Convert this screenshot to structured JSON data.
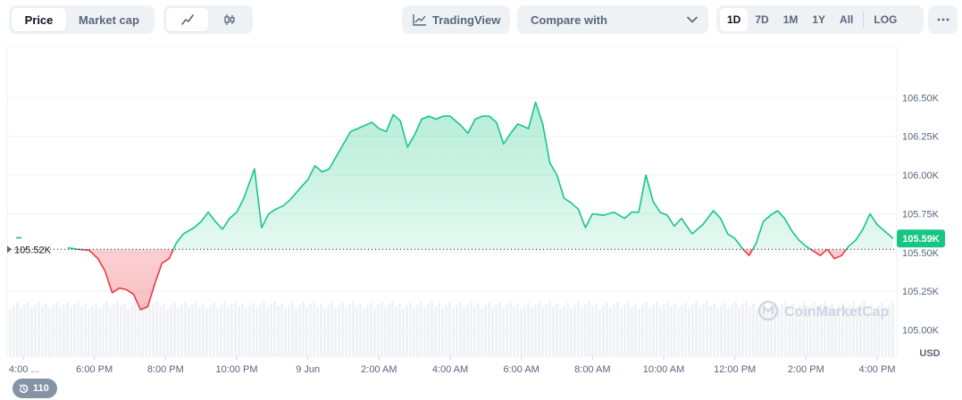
{
  "toolbar": {
    "view_tabs": [
      {
        "label": "Price",
        "active": true
      },
      {
        "label": "Market cap",
        "active": false
      }
    ],
    "chart_types": [
      {
        "icon": "line-chart-icon",
        "active": true
      },
      {
        "icon": "candlestick-icon",
        "active": false
      }
    ],
    "tradingview_label": "TradingView",
    "compare_label": "Compare with",
    "ranges": [
      {
        "label": "1D",
        "active": true
      },
      {
        "label": "7D",
        "active": false
      },
      {
        "label": "1M",
        "active": false
      },
      {
        "label": "1Y",
        "active": false
      },
      {
        "label": "All",
        "active": false
      },
      {
        "label": "LOG",
        "active": false
      }
    ],
    "more_icon": "more-dots-icon"
  },
  "watermark": "CoinMarketCap",
  "notification_count": "110",
  "colors": {
    "up": "#16c784",
    "down": "#ea3943",
    "axis_text": "#58667e",
    "grid": "#eff2f5"
  },
  "chart_data": {
    "type": "area",
    "ylabel": "USD",
    "reference_value": 105520,
    "reference_label": "105.52K",
    "current_value": 105590,
    "current_label": "105.59K",
    "ylim": [
      104830,
      106830
    ],
    "yticks": [
      {
        "value": 106500,
        "label": "106.50K"
      },
      {
        "value": 106250,
        "label": "106.25K"
      },
      {
        "value": 106000,
        "label": "106.00K"
      },
      {
        "value": 105750,
        "label": "105.75K"
      },
      {
        "value": 105500,
        "label": "105.50K"
      },
      {
        "value": 105250,
        "label": "105.25K"
      },
      {
        "value": 105000,
        "label": "105.00K"
      }
    ],
    "xlim": [
      0,
      24.5
    ],
    "xticks": [
      {
        "value": 0,
        "label": "4:00 ..."
      },
      {
        "value": 2,
        "label": "6:00 PM"
      },
      {
        "value": 4,
        "label": "8:00 PM"
      },
      {
        "value": 6,
        "label": "10:00 PM"
      },
      {
        "value": 8,
        "label": "9 Jun"
      },
      {
        "value": 10,
        "label": "2:00 AM"
      },
      {
        "value": 12,
        "label": "4:00 AM"
      },
      {
        "value": 14,
        "label": "6:00 AM"
      },
      {
        "value": 16,
        "label": "8:00 AM"
      },
      {
        "value": 18,
        "label": "10:00 AM"
      },
      {
        "value": 20,
        "label": "12:00 PM"
      },
      {
        "value": 22,
        "label": "2:00 PM"
      },
      {
        "value": 24,
        "label": "4:00 PM"
      }
    ],
    "x_unit": "hours since 4:00 PM, 8 Jun",
    "points": [
      [
        1.25,
        105530
      ],
      [
        1.55,
        105520
      ],
      [
        1.85,
        105515
      ],
      [
        2.1,
        105460
      ],
      [
        2.3,
        105380
      ],
      [
        2.5,
        105240
      ],
      [
        2.7,
        105270
      ],
      [
        2.9,
        105260
      ],
      [
        3.1,
        105230
      ],
      [
        3.3,
        105130
      ],
      [
        3.5,
        105150
      ],
      [
        3.7,
        105300
      ],
      [
        3.9,
        105430
      ],
      [
        4.1,
        105460
      ],
      [
        4.3,
        105560
      ],
      [
        4.5,
        105620
      ],
      [
        4.8,
        105660
      ],
      [
        5.0,
        105700
      ],
      [
        5.2,
        105760
      ],
      [
        5.4,
        105700
      ],
      [
        5.6,
        105650
      ],
      [
        5.8,
        105720
      ],
      [
        6.0,
        105760
      ],
      [
        6.2,
        105850
      ],
      [
        6.5,
        106040
      ],
      [
        6.7,
        105660
      ],
      [
        6.9,
        105750
      ],
      [
        7.1,
        105780
      ],
      [
        7.3,
        105800
      ],
      [
        7.5,
        105840
      ],
      [
        7.8,
        105920
      ],
      [
        8.0,
        105970
      ],
      [
        8.2,
        106060
      ],
      [
        8.4,
        106020
      ],
      [
        8.6,
        106040
      ],
      [
        8.8,
        106120
      ],
      [
        9.0,
        106200
      ],
      [
        9.2,
        106280
      ],
      [
        9.4,
        106300
      ],
      [
        9.6,
        106320
      ],
      [
        9.8,
        106340
      ],
      [
        10.0,
        106300
      ],
      [
        10.2,
        106280
      ],
      [
        10.4,
        106390
      ],
      [
        10.6,
        106350
      ],
      [
        10.8,
        106180
      ],
      [
        11.0,
        106260
      ],
      [
        11.2,
        106360
      ],
      [
        11.4,
        106380
      ],
      [
        11.6,
        106360
      ],
      [
        11.8,
        106380
      ],
      [
        12.0,
        106380
      ],
      [
        12.3,
        106320
      ],
      [
        12.5,
        106270
      ],
      [
        12.7,
        106360
      ],
      [
        12.9,
        106380
      ],
      [
        13.1,
        106380
      ],
      [
        13.3,
        106340
      ],
      [
        13.5,
        106200
      ],
      [
        13.7,
        106270
      ],
      [
        13.9,
        106330
      ],
      [
        14.2,
        106300
      ],
      [
        14.4,
        106470
      ],
      [
        14.6,
        106330
      ],
      [
        14.8,
        106080
      ],
      [
        15.0,
        106000
      ],
      [
        15.2,
        105850
      ],
      [
        15.4,
        105820
      ],
      [
        15.6,
        105780
      ],
      [
        15.8,
        105660
      ],
      [
        16.0,
        105750
      ],
      [
        16.3,
        105740
      ],
      [
        16.6,
        105760
      ],
      [
        16.9,
        105720
      ],
      [
        17.1,
        105760
      ],
      [
        17.3,
        105760
      ],
      [
        17.5,
        106000
      ],
      [
        17.7,
        105830
      ],
      [
        17.9,
        105760
      ],
      [
        18.1,
        105740
      ],
      [
        18.3,
        105670
      ],
      [
        18.5,
        105720
      ],
      [
        18.8,
        105620
      ],
      [
        19.1,
        105680
      ],
      [
        19.4,
        105770
      ],
      [
        19.6,
        105720
      ],
      [
        19.8,
        105620
      ],
      [
        20.0,
        105590
      ],
      [
        20.2,
        105530
      ],
      [
        20.4,
        105480
      ],
      [
        20.6,
        105560
      ],
      [
        20.8,
        105700
      ],
      [
        21.0,
        105740
      ],
      [
        21.2,
        105770
      ],
      [
        21.4,
        105720
      ],
      [
        21.6,
        105640
      ],
      [
        21.8,
        105580
      ],
      [
        22.0,
        105540
      ],
      [
        22.2,
        105510
      ],
      [
        22.4,
        105480
      ],
      [
        22.6,
        105520
      ],
      [
        22.8,
        105460
      ],
      [
        23.0,
        105480
      ],
      [
        23.2,
        105540
      ],
      [
        23.4,
        105580
      ],
      [
        23.6,
        105650
      ],
      [
        23.8,
        105750
      ],
      [
        24.0,
        105680
      ],
      [
        24.2,
        105640
      ],
      [
        24.45,
        105590
      ]
    ],
    "volume_level": 0.18
  }
}
